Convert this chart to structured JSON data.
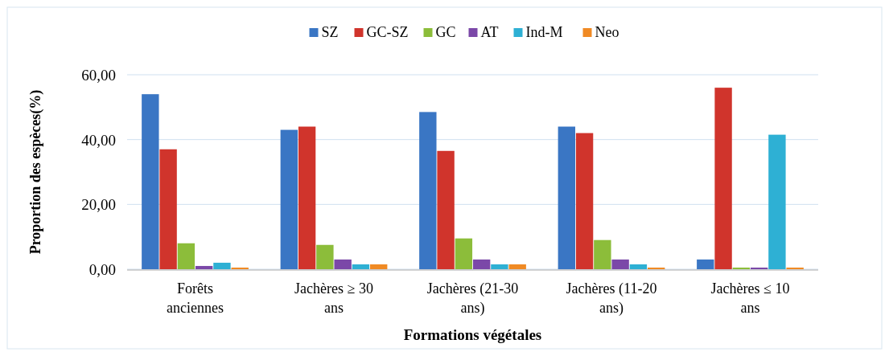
{
  "chart_data": {
    "type": "bar",
    "xlabel": "Formations végétales",
    "ylabel": "Proportion des espèces(%)",
    "categories": [
      "Forêts anciennes",
      "Jachères ≥ 30 ans",
      "Jachères (21-30 ans)",
      "Jachères (11-20 ans)",
      "Jachères ≤ 10 ans"
    ],
    "series": [
      {
        "name": "SZ",
        "color": "#3a76c4",
        "values": [
          54,
          43,
          48.5,
          44,
          3
        ]
      },
      {
        "name": "GC-SZ",
        "color": "#d0342c",
        "values": [
          37,
          44,
          36.5,
          42,
          56
        ]
      },
      {
        "name": "GC",
        "color": "#8cbd3a",
        "values": [
          8,
          7.5,
          9.5,
          9,
          0.5
        ]
      },
      {
        "name": "AT",
        "color": "#7b48a8",
        "values": [
          1,
          3,
          3,
          3,
          0.5
        ]
      },
      {
        "name": "Ind-M",
        "color": "#2eb0d4",
        "values": [
          2,
          1.5,
          1.5,
          1.5,
          41.5
        ]
      },
      {
        "name": "Neo",
        "color": "#f08a24",
        "values": [
          0.5,
          1.5,
          1.5,
          0.5,
          0.5
        ]
      }
    ],
    "ylim": [
      0,
      60
    ],
    "yticks": [
      {
        "value": 0,
        "label": "0,00"
      },
      {
        "value": 20,
        "label": "20,00"
      },
      {
        "value": 40,
        "label": "40,00"
      },
      {
        "value": 60,
        "label": "60,00"
      }
    ],
    "grid": "y",
    "legend": "top"
  }
}
